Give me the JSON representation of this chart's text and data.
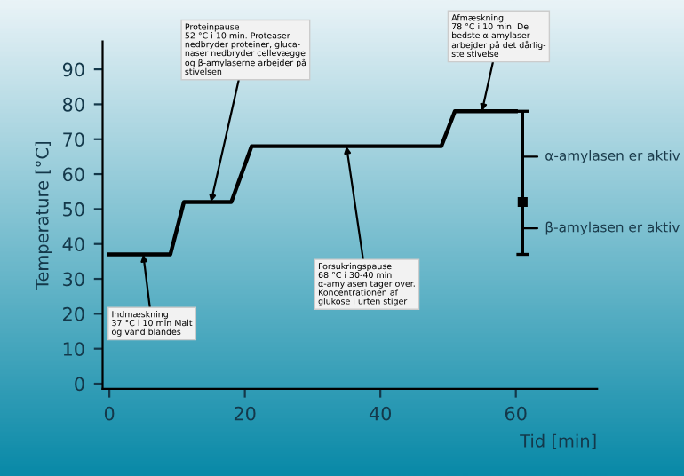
{
  "chart_data": {
    "type": "line",
    "xlabel": "Tid [min]",
    "ylabel": "Temperature [°C]",
    "x": [
      0,
      9,
      11,
      18,
      21,
      49,
      51,
      60
    ],
    "series": [
      {
        "color": "#000000",
        "values": [
          37,
          37,
          52,
          52,
          68,
          68,
          78,
          78
        ]
      },
      {
        "type": "scatter",
        "color": "#000000",
        "x": [
          61
        ],
        "values": [
          52
        ],
        "errors": [
          [
            37,
            78
          ]
        ],
        "marker": "square"
      }
    ],
    "xlim": [
      -1,
      72
    ],
    "ylim": [
      -1.5,
      98
    ],
    "xticks": [
      0,
      20,
      40,
      60
    ],
    "yticks": [
      0,
      10,
      20,
      30,
      40,
      50,
      60,
      70,
      80,
      90
    ],
    "grid": false,
    "legend": false,
    "marker": "none",
    "line_style": "solid",
    "annotations": [
      {
        "text": "Indmæskning\n37 °C i 10 min Malt\nog vand blandes",
        "x": 5,
        "y": 37
      },
      {
        "text": "Proteinpause\n52 °C i 10 min. Proteaser\nnedbryder proteiner, gluca-\nnaser nedbryder cellevægge\nog β-amylaserne arbejder på\nstivelsen",
        "x": 15,
        "y": 52
      },
      {
        "text": "Forsukringspause\n68 °C i 30-40 min\nα-amylasen tager over.\nKoncentrationen af\nglukose i urten stiger",
        "x": 35,
        "y": 68
      },
      {
        "text": "Afmæskning\n78 °C i 10 min. De\nbedste α-amylaser\narbejder på det dårlig-\nste stivelse",
        "x": 55,
        "y": 78
      },
      {
        "text": "α-amylasen er aktiv",
        "x": 61,
        "y": 65
      },
      {
        "text": "β-amylasen er aktiv",
        "x": 61,
        "y": 44.5
      }
    ]
  }
}
